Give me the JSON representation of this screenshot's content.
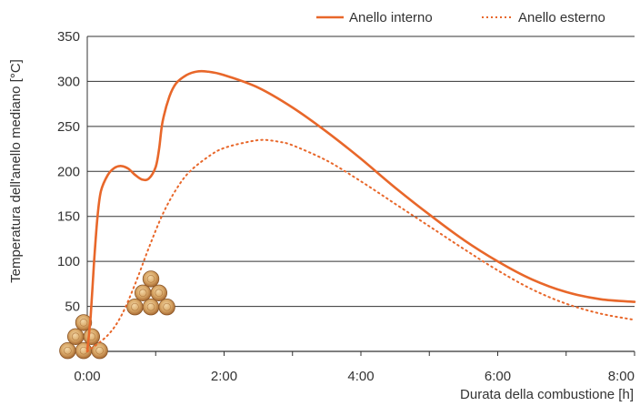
{
  "chart_data": {
    "type": "line",
    "xlabel": "Durata della combustione [h]",
    "ylabel": "Temperatura dell'anello mediano [°C]",
    "xlim": [
      0,
      8
    ],
    "ylim": [
      0,
      350
    ],
    "x_ticks": [
      {
        "value": 0,
        "label": "0:00"
      },
      {
        "value": 2,
        "label": "2:00"
      },
      {
        "value": 4,
        "label": "4:00"
      },
      {
        "value": 6,
        "label": "6:00"
      },
      {
        "value": 8,
        "label": "8:00"
      }
    ],
    "y_ticks": [
      {
        "value": 50,
        "label": "50"
      },
      {
        "value": 100,
        "label": "100"
      },
      {
        "value": 150,
        "label": "150"
      },
      {
        "value": 200,
        "label": "200"
      },
      {
        "value": 250,
        "label": "250"
      },
      {
        "value": 300,
        "label": "300"
      },
      {
        "value": 350,
        "label": "350"
      }
    ],
    "grid": "horizontal",
    "legend_position": "top-right",
    "series": [
      {
        "name": "Anello interno",
        "style": "solid",
        "color": "#e8672a",
        "points": [
          [
            0,
            0
          ],
          [
            0.05,
            40
          ],
          [
            0.1,
            100
          ],
          [
            0.15,
            150
          ],
          [
            0.2,
            178
          ],
          [
            0.3,
            196
          ],
          [
            0.4,
            204
          ],
          [
            0.5,
            206
          ],
          [
            0.6,
            203
          ],
          [
            0.7,
            196
          ],
          [
            0.8,
            191
          ],
          [
            0.9,
            192
          ],
          [
            1.0,
            205
          ],
          [
            1.05,
            225
          ],
          [
            1.1,
            255
          ],
          [
            1.2,
            283
          ],
          [
            1.3,
            298
          ],
          [
            1.45,
            307
          ],
          [
            1.6,
            311
          ],
          [
            1.75,
            311
          ],
          [
            2.0,
            307
          ],
          [
            2.5,
            293
          ],
          [
            3.0,
            271
          ],
          [
            3.5,
            244
          ],
          [
            4.0,
            214
          ],
          [
            4.5,
            182
          ],
          [
            5.0,
            152
          ],
          [
            5.5,
            124
          ],
          [
            6.0,
            100
          ],
          [
            6.5,
            80
          ],
          [
            7.0,
            66
          ],
          [
            7.5,
            58
          ],
          [
            8.0,
            55
          ]
        ]
      },
      {
        "name": "Anello esterno",
        "style": "dotted",
        "color": "#e8672a",
        "points": [
          [
            0,
            0
          ],
          [
            0.3,
            18
          ],
          [
            0.5,
            40
          ],
          [
            0.7,
            75
          ],
          [
            0.9,
            115
          ],
          [
            1.1,
            152
          ],
          [
            1.3,
            180
          ],
          [
            1.5,
            200
          ],
          [
            1.8,
            218
          ],
          [
            2.0,
            226
          ],
          [
            2.3,
            232
          ],
          [
            2.55,
            235
          ],
          [
            2.8,
            233
          ],
          [
            3.0,
            229
          ],
          [
            3.5,
            212
          ],
          [
            4.0,
            189
          ],
          [
            4.5,
            164
          ],
          [
            5.0,
            139
          ],
          [
            5.5,
            114
          ],
          [
            6.0,
            90
          ],
          [
            6.5,
            69
          ],
          [
            7.0,
            53
          ],
          [
            7.5,
            42
          ],
          [
            8.0,
            35
          ]
        ]
      }
    ]
  },
  "colors": {
    "line": "#e8672a",
    "grid": "#333333",
    "wood": "#c8955a"
  },
  "icons": [
    "log-pile-small-icon",
    "log-pile-large-icon"
  ]
}
